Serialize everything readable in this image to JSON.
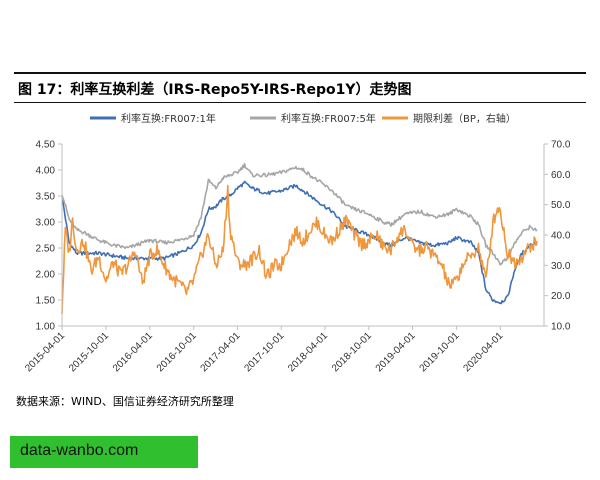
{
  "title": "图 17：利率互换利差（IRS-Repo5Y-IRS-Repo1Y）走势图",
  "source": "数据来源：WIND、国信证券经济研究所整理",
  "watermark": "data-wanbo.com",
  "chart_data": {
    "type": "line",
    "title": "图 17：利率互换利差（IRS-Repo5Y-IRS-Repo1Y）走势图",
    "legend_position": "top",
    "grid": false,
    "x_ticks": [
      "2015-04-01",
      "2015-10-01",
      "2016-04-01",
      "2016-10-01",
      "2017-04-01",
      "2017-10-01",
      "2018-04-01",
      "2018-10-01",
      "2019-04-01",
      "2019-10-01",
      "2020-04-01"
    ],
    "xlim": [
      "2015-04-01",
      "2020-09-30"
    ],
    "y_left": {
      "ylim": [
        1.0,
        4.5
      ],
      "ticks": [
        "1.00",
        "1.50",
        "2.00",
        "2.50",
        "3.00",
        "3.50",
        "4.00",
        "4.50"
      ]
    },
    "y_right": {
      "ylim": [
        10.0,
        70.0
      ],
      "ticks": [
        "10.0",
        "20.0",
        "30.0",
        "40.0",
        "50.0",
        "60.0",
        "70.0"
      ]
    },
    "series": [
      {
        "name": "利率互换:FR007:1年",
        "axis": "left",
        "color": "#3e6fb5",
        "points": [
          [
            "2015-04-01",
            3.5
          ],
          [
            "2015-05-01",
            2.6
          ],
          [
            "2015-06-01",
            2.4
          ],
          [
            "2015-07-01",
            2.4
          ],
          [
            "2015-09-01",
            2.4
          ],
          [
            "2015-11-01",
            2.35
          ],
          [
            "2016-01-01",
            2.3
          ],
          [
            "2016-04-01",
            2.3
          ],
          [
            "2016-06-01",
            2.3
          ],
          [
            "2016-08-01",
            2.4
          ],
          [
            "2016-10-01",
            2.55
          ],
          [
            "2016-11-01",
            2.8
          ],
          [
            "2016-12-01",
            3.25
          ],
          [
            "2017-01-01",
            3.3
          ],
          [
            "2017-02-01",
            3.45
          ],
          [
            "2017-03-01",
            3.5
          ],
          [
            "2017-04-01",
            3.65
          ],
          [
            "2017-05-01",
            3.75
          ],
          [
            "2017-06-01",
            3.65
          ],
          [
            "2017-08-01",
            3.55
          ],
          [
            "2017-10-01",
            3.6
          ],
          [
            "2017-12-01",
            3.7
          ],
          [
            "2018-01-01",
            3.6
          ],
          [
            "2018-03-01",
            3.4
          ],
          [
            "2018-05-01",
            3.2
          ],
          [
            "2018-07-01",
            2.9
          ],
          [
            "2018-10-01",
            2.75
          ],
          [
            "2018-12-01",
            2.6
          ],
          [
            "2019-01-01",
            2.55
          ],
          [
            "2019-03-01",
            2.7
          ],
          [
            "2019-05-01",
            2.6
          ],
          [
            "2019-07-01",
            2.55
          ],
          [
            "2019-09-01",
            2.6
          ],
          [
            "2019-10-01",
            2.7
          ],
          [
            "2019-12-01",
            2.6
          ],
          [
            "2020-01-01",
            2.4
          ],
          [
            "2020-02-01",
            1.7
          ],
          [
            "2020-03-01",
            1.5
          ],
          [
            "2020-04-01",
            1.45
          ],
          [
            "2020-05-01",
            1.55
          ],
          [
            "2020-06-01",
            2.1
          ],
          [
            "2020-07-01",
            2.4
          ],
          [
            "2020-08-01",
            2.55
          ],
          [
            "2020-09-01",
            2.6
          ]
        ]
      },
      {
        "name": "利率互换:FR007:5年",
        "axis": "left",
        "color": "#a6a6a6",
        "points": [
          [
            "2015-04-01",
            3.55
          ],
          [
            "2015-05-01",
            3.05
          ],
          [
            "2015-06-01",
            2.85
          ],
          [
            "2015-07-01",
            2.8
          ],
          [
            "2015-09-01",
            2.65
          ],
          [
            "2015-11-01",
            2.55
          ],
          [
            "2016-01-01",
            2.5
          ],
          [
            "2016-04-01",
            2.65
          ],
          [
            "2016-06-01",
            2.6
          ],
          [
            "2016-08-01",
            2.65
          ],
          [
            "2016-10-01",
            2.75
          ],
          [
            "2016-11-01",
            3.1
          ],
          [
            "2016-12-01",
            3.8
          ],
          [
            "2017-01-01",
            3.65
          ],
          [
            "2017-02-01",
            3.85
          ],
          [
            "2017-03-01",
            3.9
          ],
          [
            "2017-04-01",
            3.95
          ],
          [
            "2017-05-01",
            4.1
          ],
          [
            "2017-06-01",
            3.9
          ],
          [
            "2017-08-01",
            3.9
          ],
          [
            "2017-10-01",
            3.95
          ],
          [
            "2017-12-01",
            4.05
          ],
          [
            "2018-01-01",
            4.0
          ],
          [
            "2018-03-01",
            3.8
          ],
          [
            "2018-05-01",
            3.6
          ],
          [
            "2018-07-01",
            3.3
          ],
          [
            "2018-10-01",
            3.15
          ],
          [
            "2018-12-01",
            3.0
          ],
          [
            "2019-01-01",
            2.95
          ],
          [
            "2019-03-01",
            3.15
          ],
          [
            "2019-05-01",
            3.2
          ],
          [
            "2019-07-01",
            3.1
          ],
          [
            "2019-09-01",
            3.15
          ],
          [
            "2019-10-01",
            3.25
          ],
          [
            "2019-12-01",
            3.1
          ],
          [
            "2020-01-01",
            2.95
          ],
          [
            "2020-02-01",
            2.55
          ],
          [
            "2020-03-01",
            2.4
          ],
          [
            "2020-04-01",
            2.2
          ],
          [
            "2020-05-01",
            2.3
          ],
          [
            "2020-06-01",
            2.6
          ],
          [
            "2020-07-01",
            2.8
          ],
          [
            "2020-08-01",
            2.9
          ],
          [
            "2020-09-01",
            2.85
          ]
        ]
      },
      {
        "name": "期限利差（BP，右轴）",
        "axis": "right",
        "color": "#f0963c",
        "points": [
          [
            "2015-04-01",
            15
          ],
          [
            "2015-04-15",
            42
          ],
          [
            "2015-05-01",
            34
          ],
          [
            "2015-05-15",
            45
          ],
          [
            "2015-06-01",
            35
          ],
          [
            "2015-07-01",
            38
          ],
          [
            "2015-08-01",
            28
          ],
          [
            "2015-09-01",
            33
          ],
          [
            "2015-10-01",
            25
          ],
          [
            "2015-11-01",
            31
          ],
          [
            "2015-12-01",
            27
          ],
          [
            "2016-01-01",
            30
          ],
          [
            "2016-02-01",
            35
          ],
          [
            "2016-03-01",
            24
          ],
          [
            "2016-04-01",
            33
          ],
          [
            "2016-05-01",
            35
          ],
          [
            "2016-06-01",
            30
          ],
          [
            "2016-07-01",
            26
          ],
          [
            "2016-08-01",
            24
          ],
          [
            "2016-09-01",
            21
          ],
          [
            "2016-10-01",
            25
          ],
          [
            "2016-11-01",
            33
          ],
          [
            "2016-12-01",
            40
          ],
          [
            "2017-01-01",
            30
          ],
          [
            "2017-02-01",
            35
          ],
          [
            "2017-02-20",
            55
          ],
          [
            "2017-03-01",
            42
          ],
          [
            "2017-04-01",
            31
          ],
          [
            "2017-05-01",
            30
          ],
          [
            "2017-06-01",
            32
          ],
          [
            "2017-07-01",
            35
          ],
          [
            "2017-08-01",
            26
          ],
          [
            "2017-09-01",
            30
          ],
          [
            "2017-10-01",
            30
          ],
          [
            "2017-11-01",
            37
          ],
          [
            "2017-12-01",
            41
          ],
          [
            "2018-01-01",
            38
          ],
          [
            "2018-02-01",
            42
          ],
          [
            "2018-03-01",
            44
          ],
          [
            "2018-04-01",
            40
          ],
          [
            "2018-05-01",
            38
          ],
          [
            "2018-06-01",
            42
          ],
          [
            "2018-07-01",
            45
          ],
          [
            "2018-08-01",
            40
          ],
          [
            "2018-09-01",
            37
          ],
          [
            "2018-10-01",
            38
          ],
          [
            "2018-11-01",
            40
          ],
          [
            "2018-12-01",
            36
          ],
          [
            "2019-01-01",
            35
          ],
          [
            "2019-02-01",
            40
          ],
          [
            "2019-03-01",
            42
          ],
          [
            "2019-04-01",
            36
          ],
          [
            "2019-05-01",
            35
          ],
          [
            "2019-06-01",
            36
          ],
          [
            "2019-07-01",
            33
          ],
          [
            "2019-08-01",
            30
          ],
          [
            "2019-09-01",
            23
          ],
          [
            "2019-10-01",
            25
          ],
          [
            "2019-11-01",
            31
          ],
          [
            "2019-12-01",
            33
          ],
          [
            "2020-01-01",
            36
          ],
          [
            "2020-02-01",
            25
          ],
          [
            "2020-03-01",
            44
          ],
          [
            "2020-03-20",
            49
          ],
          [
            "2020-04-01",
            48
          ],
          [
            "2020-05-01",
            34
          ],
          [
            "2020-06-01",
            31
          ],
          [
            "2020-07-01",
            33
          ],
          [
            "2020-08-01",
            36
          ],
          [
            "2020-09-01",
            38
          ]
        ]
      }
    ]
  }
}
